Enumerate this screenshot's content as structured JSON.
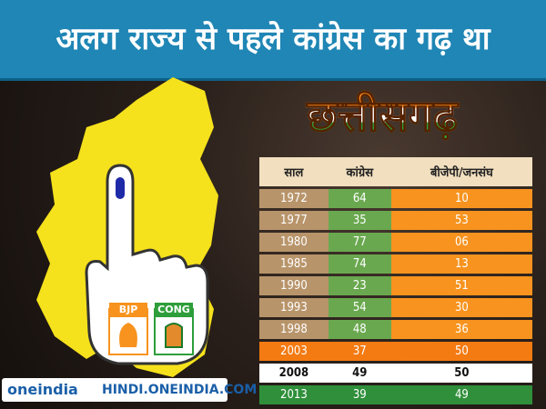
{
  "header": {
    "title": "अलग राज्य से पहले कांग्रेस का गढ़ था",
    "subtitle": "छत्तीसगढ़"
  },
  "table": {
    "columns": [
      "साल",
      "कांग्रेस",
      "बीजेपी/जनसंघ"
    ],
    "rows": [
      [
        "1972",
        "64",
        "10"
      ],
      [
        "1977",
        "35",
        "53"
      ],
      [
        "1980",
        "77",
        "06"
      ],
      [
        "1985",
        "74",
        "13"
      ],
      [
        "1990",
        "23",
        "51"
      ],
      [
        "1993",
        "54",
        "30"
      ],
      [
        "1998",
        "48",
        "36"
      ],
      [
        "2003",
        "37",
        "50"
      ],
      [
        "2008",
        "49",
        "50"
      ],
      [
        "2013",
        "39",
        "49"
      ]
    ]
  },
  "parties": [
    "BJP",
    "CONG"
  ],
  "footer": {
    "logo": "oneindia",
    "url": "HINDI.ONEINDIA.COM"
  }
}
